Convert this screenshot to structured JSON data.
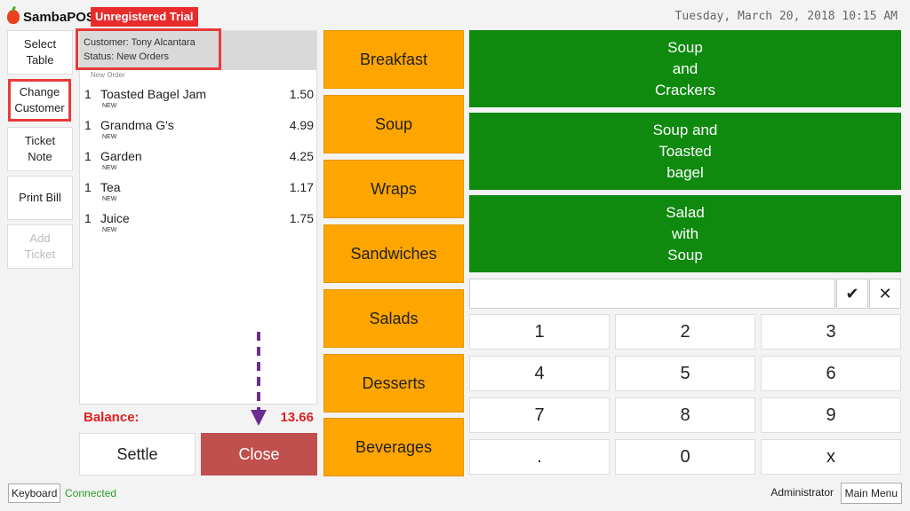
{
  "app": {
    "name": "SambaPOS",
    "trial_badge": "Unregistered Trial",
    "datetime": "Tuesday, March 20, 2018 10:15 AM"
  },
  "left_buttons": {
    "select_table": "Select\nTable",
    "change_customer": "Change\nCustomer",
    "ticket_note": "Ticket\nNote",
    "print_bill": "Print Bill",
    "add_ticket": "Add\nTicket"
  },
  "ticket": {
    "customer": "Customer: Tony Alcantara",
    "status": "Status: New Orders",
    "group_label": "New Order",
    "orders": [
      {
        "qty": "1",
        "name": "Toasted Bagel Jam",
        "price": "1.50",
        "tag": "NEW"
      },
      {
        "qty": "1",
        "name": "Grandma G's",
        "price": "4.99",
        "tag": "NEW"
      },
      {
        "qty": "1",
        "name": "Garden",
        "price": "4.25",
        "tag": "NEW"
      },
      {
        "qty": "1",
        "name": "Tea",
        "price": "1.17",
        "tag": "NEW"
      },
      {
        "qty": "1",
        "name": "Juice",
        "price": "1.75",
        "tag": "NEW"
      }
    ],
    "balance_label": "Balance:",
    "balance_value": "13.66",
    "settle_label": "Settle",
    "close_label": "Close"
  },
  "categories": [
    "Breakfast",
    "Soup",
    "Wraps",
    "Sandwiches",
    "Salads",
    "Desserts",
    "Beverages"
  ],
  "products": [
    "Soup\nand\nCrackers",
    "Soup and\nToasted\nbagel",
    "Salad\nwith\nSoup"
  ],
  "numpad": {
    "input_value": "",
    "confirm_icon": "check-icon",
    "clear_icon": "close-icon",
    "keys": [
      "1",
      "2",
      "3",
      "4",
      "5",
      "6",
      "7",
      "8",
      "9",
      ".",
      "0",
      "x"
    ]
  },
  "statusbar": {
    "keyboard": "Keyboard",
    "connected": "Connected",
    "user": "Administrator",
    "main_menu": "Main Menu"
  },
  "colors": {
    "category": "#ffa500",
    "product": "#0f8a0f",
    "close": "#c0504d",
    "balance": "#e02020",
    "highlight": "#e83a3a",
    "arrow": "#6a2c91"
  }
}
